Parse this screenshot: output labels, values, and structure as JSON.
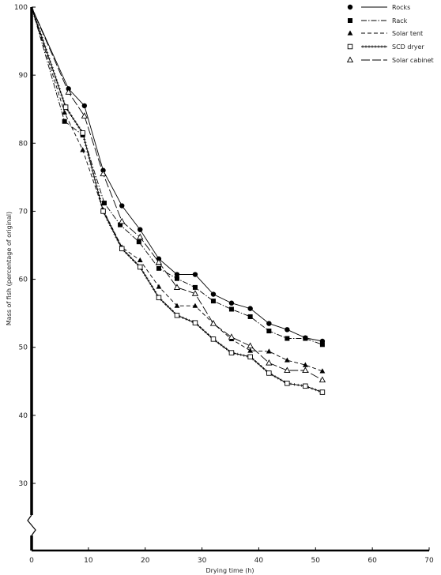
{
  "chart_data": {
    "type": "line",
    "xlabel": "Drying time (h)",
    "ylabel": "Mass of fish (percentage of original)",
    "xlim": [
      0,
      70
    ],
    "ylim": [
      25,
      100
    ],
    "axis_break": "y",
    "x_ticks": [
      "0",
      "10",
      "20",
      "30",
      "40",
      "50",
      "60",
      "70"
    ],
    "y_ticks": [
      "30",
      "40",
      "50",
      "60",
      "70",
      "80",
      "90",
      "100"
    ],
    "grid": false,
    "legend_position": "top-right",
    "series": [
      {
        "name": "Rocks",
        "marker": "filled-circle",
        "line": "solid",
        "x": [
          0,
          6.5,
          9.3,
          12.6,
          15.9,
          19.1,
          22.4,
          25.6,
          28.8,
          32.0,
          35.2,
          38.5,
          41.8,
          45.0,
          48.2,
          51.2
        ],
        "y": [
          100,
          88,
          85.5,
          76,
          70.8,
          67.3,
          63,
          60.7,
          60.7,
          57.8,
          56.5,
          55.7,
          53.5,
          52.6,
          51.4,
          50.9
        ]
      },
      {
        "name": "Rack",
        "marker": "filled-square",
        "line": "dash-dot",
        "x": [
          0,
          5.8,
          9.0,
          12.8,
          15.6,
          18.9,
          22.4,
          25.6,
          28.8,
          32.0,
          35.2,
          38.5,
          41.8,
          45.0,
          48.2,
          51.2
        ],
        "y": [
          100,
          83.2,
          81.2,
          71.2,
          68,
          65.5,
          61.6,
          60.1,
          58.8,
          56.8,
          55.6,
          54.5,
          52.4,
          51.3,
          51.3,
          50.4
        ]
      },
      {
        "name": "Solar tent",
        "marker": "filled-triangle",
        "line": "dashed",
        "x": [
          0,
          5.8,
          9.0,
          12.6,
          15.9,
          19.1,
          22.4,
          25.6,
          28.8,
          32.0,
          35.2,
          38.5,
          41.8,
          45.0,
          48.2,
          51.2
        ],
        "y": [
          100,
          84.5,
          79,
          70.2,
          64.7,
          62.8,
          58.9,
          56.1,
          56.1,
          53.5,
          51.2,
          49.5,
          49.4,
          48.1,
          47.4,
          46.5
        ]
      },
      {
        "name": "SCD dryer",
        "marker": "open-square",
        "line": "plus-marked",
        "x": [
          0,
          6.0,
          9.0,
          12.6,
          15.9,
          19.1,
          22.4,
          25.6,
          28.8,
          32.0,
          35.2,
          38.5,
          41.8,
          45.0,
          48.2,
          51.2
        ],
        "y": [
          100,
          85.3,
          81.5,
          70,
          64.5,
          61.8,
          57.3,
          54.7,
          53.6,
          51.2,
          49.2,
          48.6,
          46.2,
          44.7,
          44.3,
          43.4
        ]
      },
      {
        "name": "Solar cabinet",
        "marker": "open-triangle",
        "line": "long-dash",
        "x": [
          0,
          6.5,
          9.3,
          12.6,
          15.9,
          19.1,
          22.4,
          25.6,
          28.8,
          32.0,
          35.2,
          38.5,
          41.8,
          45.0,
          48.2,
          51.2
        ],
        "y": [
          100,
          87.5,
          84,
          75.5,
          68.5,
          66.2,
          62.5,
          58.8,
          57.9,
          53.5,
          51.5,
          50.2,
          47.7,
          46.6,
          46.6,
          45.2
        ]
      }
    ]
  }
}
